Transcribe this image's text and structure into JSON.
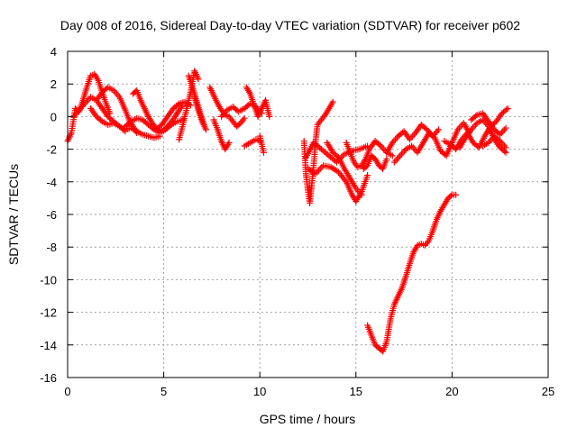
{
  "chart_data": {
    "type": "scatter",
    "title": "Day 008 of 2016, Sidereal Day-to-day VTEC variation (SDTVAR) for receiver p602",
    "xlabel": "GPS time / hours",
    "ylabel": "SDTVAR / TECUs",
    "xlim": [
      0,
      25
    ],
    "ylim": [
      -16,
      4
    ],
    "xticks": [
      0,
      5,
      10,
      15,
      20,
      25
    ],
    "yticks": [
      -16,
      -14,
      -12,
      -10,
      -8,
      -6,
      -4,
      -2,
      0,
      2,
      4
    ],
    "grid": true,
    "marker": "plus",
    "marker_color": "#ff0000",
    "series": [
      {
        "x": [
          0.0,
          0.2,
          0.4,
          0.6,
          0.8,
          1.0,
          1.2,
          1.4,
          1.6,
          1.8,
          2.0,
          2.2
        ],
        "y": [
          -1.5,
          -1.0,
          0.5,
          0.3,
          1.0,
          1.8,
          2.5,
          2.6,
          2.2,
          1.5,
          0.8,
          0.2
        ]
      },
      {
        "x": [
          0.3,
          0.6,
          0.9,
          1.2,
          1.5,
          1.8,
          2.1,
          2.4,
          2.7,
          3.0
        ],
        "y": [
          0.0,
          0.4,
          0.8,
          1.2,
          1.0,
          0.5,
          0.0,
          -0.3,
          -0.6,
          -0.9
        ]
      },
      {
        "x": [
          1.2,
          1.5,
          1.8,
          2.1,
          2.4,
          2.7,
          3.0,
          3.3,
          3.6,
          3.9,
          4.2,
          4.5,
          4.8
        ],
        "y": [
          0.5,
          0.0,
          -0.3,
          -0.5,
          -0.4,
          -0.6,
          -0.8,
          -0.7,
          -0.9,
          -1.1,
          -1.2,
          -1.3,
          -1.2
        ]
      },
      {
        "x": [
          1.5,
          1.8,
          2.1,
          2.4,
          2.7,
          3.0,
          3.2,
          3.4,
          3.6
        ],
        "y": [
          1.0,
          1.5,
          1.8,
          1.6,
          1.2,
          0.4,
          -0.2,
          -0.6,
          -1.0
        ]
      },
      {
        "x": [
          3.4,
          3.6,
          3.8,
          4.0,
          4.2,
          4.4,
          4.6,
          4.8,
          5.0,
          5.2,
          5.4,
          5.6,
          5.8,
          6.0
        ],
        "y": [
          1.4,
          1.6,
          1.0,
          0.5,
          0.0,
          -0.4,
          -0.7,
          -0.9,
          -0.8,
          -0.6,
          -0.3,
          0.0,
          0.4,
          0.7
        ]
      },
      {
        "x": [
          3.0,
          3.3,
          3.6,
          3.9,
          4.2,
          4.5,
          4.8,
          5.1,
          5.4,
          5.7,
          6.0
        ],
        "y": [
          -0.6,
          -0.3,
          -0.1,
          -0.2,
          -0.5,
          -0.8,
          -1.0,
          -0.8,
          -0.5,
          -0.3,
          -0.2
        ]
      },
      {
        "x": [
          4.6,
          4.9,
          5.2,
          5.5,
          5.8,
          6.1,
          6.4
        ],
        "y": [
          -0.8,
          -0.5,
          0.0,
          0.5,
          0.8,
          0.9,
          0.7
        ]
      },
      {
        "x": [
          5.8,
          6.0,
          6.2,
          6.4,
          6.6,
          6.8
        ],
        "y": [
          -1.4,
          -0.5,
          0.5,
          1.5,
          2.8,
          2.3
        ]
      },
      {
        "x": [
          6.3,
          6.5,
          6.7,
          6.9,
          7.1
        ],
        "y": [
          2.5,
          1.8,
          1.0,
          0.2,
          -0.5
        ]
      },
      {
        "x": [
          6.6,
          6.8,
          7.0,
          7.2
        ],
        "y": [
          1.2,
          0.4,
          -0.3,
          -0.8
        ]
      },
      {
        "x": [
          7.4,
          7.6,
          7.8,
          8.0,
          8.2,
          8.4,
          8.6,
          8.8,
          9.0,
          9.2
        ],
        "y": [
          1.8,
          1.3,
          0.8,
          0.4,
          0.1,
          0.0,
          -0.3,
          -0.6,
          -0.4,
          -0.1
        ]
      },
      {
        "x": [
          7.6,
          7.8,
          8.0,
          8.2,
          8.4
        ],
        "y": [
          -0.2,
          -0.8,
          -1.5,
          -2.0,
          -1.6
        ]
      },
      {
        "x": [
          8.0,
          8.3,
          8.6,
          8.9,
          9.2,
          9.5,
          9.8,
          10.1
        ],
        "y": [
          0.0,
          0.4,
          0.6,
          0.3,
          0.5,
          0.8,
          0.6,
          0.2
        ]
      },
      {
        "x": [
          9.3,
          9.5,
          9.7,
          9.9,
          10.1,
          10.3,
          10.5
        ],
        "y": [
          1.8,
          1.4,
          0.7,
          0.0,
          0.5,
          1.0,
          0.0
        ]
      },
      {
        "x": [
          9.2,
          9.5,
          9.8,
          10.0
        ],
        "y": [
          -1.8,
          -1.6,
          -1.4,
          -1.5
        ]
      },
      {
        "x": [
          10.0,
          10.2
        ],
        "y": [
          -1.2,
          -2.2
        ]
      },
      {
        "x": [
          12.3,
          12.4,
          12.5,
          12.6,
          12.7,
          12.8,
          12.9,
          13.0,
          13.2,
          13.4,
          13.6,
          13.8
        ],
        "y": [
          -1.5,
          -3.5,
          -4.5,
          -5.3,
          -4.2,
          -3.0,
          -1.5,
          -0.5,
          -0.2,
          0.1,
          0.5,
          0.9
        ]
      },
      {
        "x": [
          12.4,
          12.8,
          13.2,
          13.6,
          14.0,
          14.4,
          14.8,
          15.2,
          15.6
        ],
        "y": [
          -2.5,
          -1.6,
          -2.0,
          -2.4,
          -2.8,
          -2.3,
          -2.1,
          -2.0,
          -1.8
        ]
      },
      {
        "x": [
          12.5,
          12.9,
          13.3,
          13.7,
          14.1,
          14.5,
          14.8,
          15.0,
          15.3,
          15.6
        ],
        "y": [
          -3.2,
          -3.5,
          -3.0,
          -3.1,
          -3.4,
          -4.0,
          -4.8,
          -5.2,
          -4.6,
          -3.6
        ]
      },
      {
        "x": [
          13.5,
          13.8,
          14.1,
          14.4,
          14.7,
          15.0,
          15.3
        ],
        "y": [
          -1.6,
          -2.2,
          -2.5,
          -3.2,
          -3.8,
          -4.4,
          -4.8
        ]
      },
      {
        "x": [
          14.5,
          14.7,
          14.9,
          15.1,
          15.3,
          15.5,
          15.7,
          16.0,
          16.3,
          16.6,
          16.9
        ],
        "y": [
          -1.6,
          -2.2,
          -2.8,
          -3.1,
          -3.0,
          -2.6,
          -2.0,
          -1.5,
          -1.8,
          -2.2,
          -2.4
        ]
      },
      {
        "x": [
          15.4,
          15.6,
          15.8,
          16.0,
          16.2,
          16.4,
          16.6
        ],
        "y": [
          -3.2,
          -3.0,
          -2.4,
          -2.6,
          -3.0,
          -3.2,
          -2.6
        ]
      },
      {
        "x": [
          16.6,
          16.9,
          17.2,
          17.5,
          17.8,
          18.1,
          18.4,
          18.7,
          19.0,
          19.3
        ],
        "y": [
          -2.2,
          -1.6,
          -1.2,
          -0.9,
          -1.4,
          -1.0,
          -0.5,
          -0.8,
          -1.2,
          -0.8
        ]
      },
      {
        "x": [
          17.0,
          17.3,
          17.6,
          17.9,
          18.2,
          18.5,
          18.8,
          19.1,
          19.4,
          19.7,
          20.0,
          20.3,
          20.6,
          20.9
        ],
        "y": [
          -2.8,
          -2.4,
          -2.0,
          -1.8,
          -2.2,
          -1.6,
          -1.0,
          -1.3,
          -2.1,
          -2.4,
          -1.6,
          -0.8,
          -0.4,
          -1.0
        ]
      },
      {
        "x": [
          15.6,
          15.8,
          16.0,
          16.2,
          16.4,
          16.6,
          16.8,
          17.0,
          17.2,
          17.4,
          17.6,
          17.8,
          18.0,
          18.2,
          18.4,
          18.6,
          18.8,
          19.0,
          19.2,
          19.4,
          19.6,
          19.8,
          20.0,
          20.2
        ],
        "y": [
          -12.8,
          -13.4,
          -14.0,
          -14.2,
          -14.4,
          -13.8,
          -12.4,
          -11.5,
          -11.0,
          -10.5,
          -9.8,
          -9.0,
          -8.3,
          -7.9,
          -7.8,
          -7.9,
          -7.6,
          -7.0,
          -6.3,
          -5.8,
          -5.4,
          -5.0,
          -4.8,
          -4.8
        ]
      },
      {
        "x": [
          19.6,
          19.9,
          20.2,
          20.5,
          20.8,
          21.1,
          21.4,
          21.7,
          22.0,
          22.3,
          22.6,
          22.9
        ],
        "y": [
          -1.5,
          -1.7,
          -2.0,
          -1.4,
          -1.0,
          -1.6,
          -1.9,
          -1.2,
          -0.6,
          -0.3,
          0.2,
          0.5
        ]
      },
      {
        "x": [
          20.4,
          20.7,
          21.0,
          21.3,
          21.6,
          21.9,
          22.2,
          22.5,
          22.8
        ],
        "y": [
          -1.9,
          -1.3,
          -0.8,
          -0.4,
          -0.2,
          -0.6,
          -1.4,
          -1.9,
          -2.2
        ]
      },
      {
        "x": [
          21.0,
          21.3,
          21.6,
          21.9,
          22.2,
          22.5,
          22.8
        ],
        "y": [
          -0.2,
          0.1,
          0.2,
          -0.3,
          -0.8,
          -1.1,
          -0.7
        ]
      },
      {
        "x": [
          21.6,
          21.9,
          22.2,
          22.5,
          22.8
        ],
        "y": [
          -1.8,
          -1.6,
          -1.2,
          -1.5,
          -1.9
        ]
      }
    ]
  }
}
